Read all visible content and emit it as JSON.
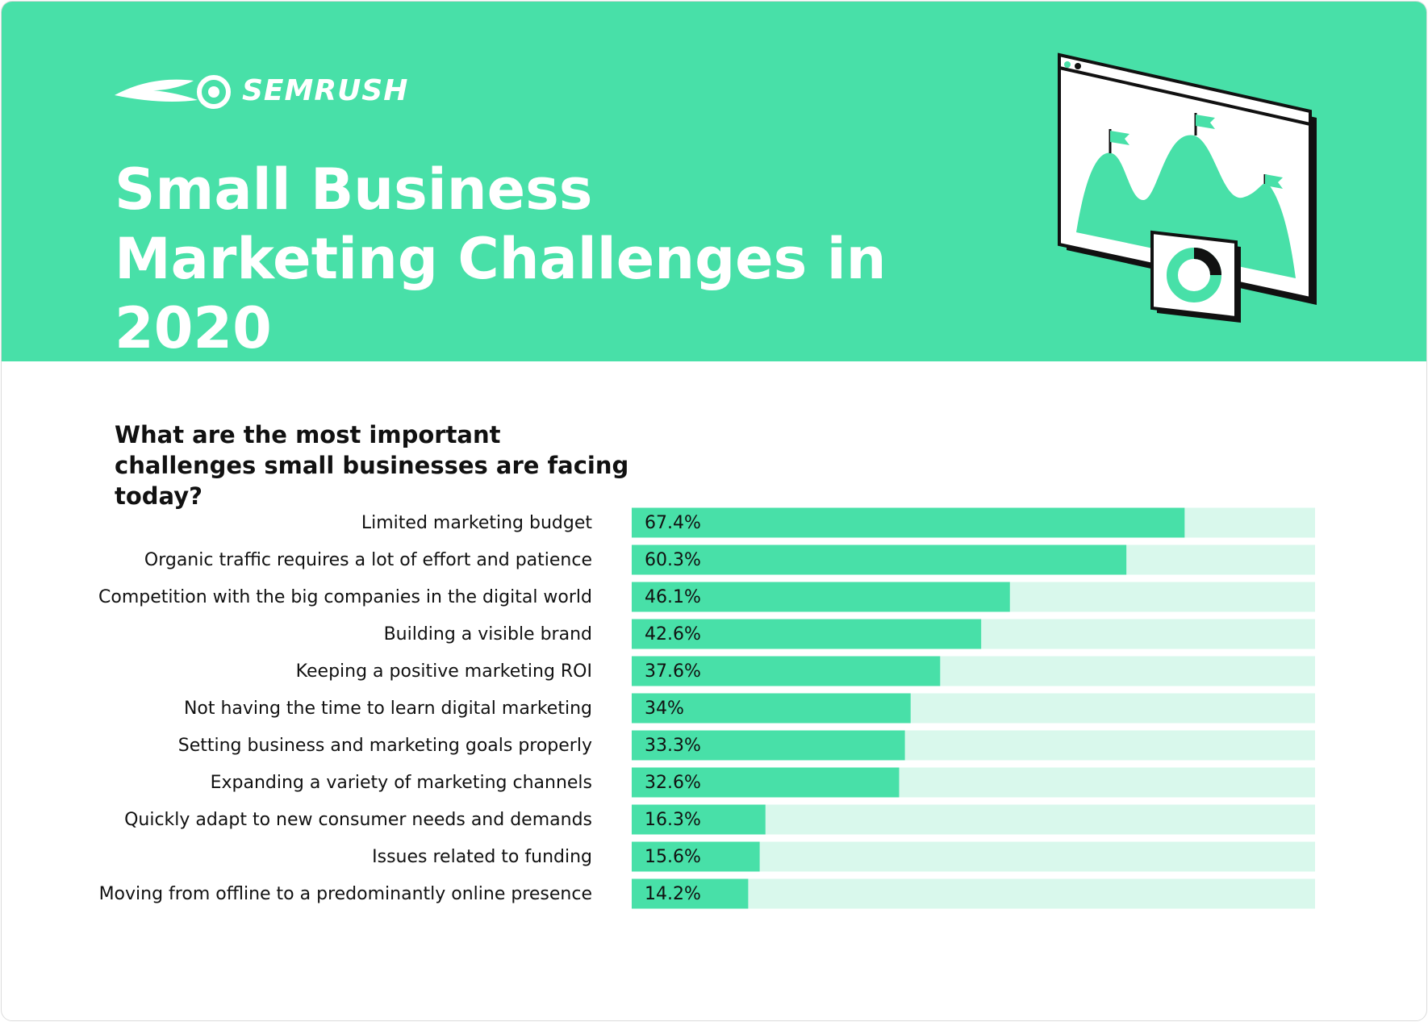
{
  "header": {
    "logo": "SEMRUSH"
  },
  "chart_data": {
    "type": "bar",
    "orientation": "horizontal",
    "title": "Small Business Marketing Challenges in 2020",
    "subtitle": "What are the most important challenges small businesses are facing today?",
    "categories": [
      "Limited marketing budget",
      "Organic traffic requires a lot of effort and patience",
      "Competition with the big companies in the digital world",
      "Building a visible brand",
      "Keeping a positive marketing ROI",
      "Not having the time to learn digital marketing",
      "Setting business and marketing goals properly",
      "Expanding a variety of marketing channels",
      "Quickly adapt to new consumer needs and demands",
      "Issues related to funding",
      "Moving from offline to a predominantly online presence"
    ],
    "values": [
      67.4,
      60.3,
      46.1,
      42.6,
      37.6,
      34,
      33.3,
      32.6,
      16.3,
      15.6,
      14.2
    ],
    "value_labels": [
      "67.4%",
      "60.3%",
      "46.1%",
      "42.6%",
      "37.6%",
      "34%",
      "33.3%",
      "32.6%",
      "16.3%",
      "15.6%",
      "14.2%"
    ],
    "xlim": [
      0,
      83.3
    ],
    "color": "#48e0a8",
    "track_color": "#d9f8ec"
  }
}
